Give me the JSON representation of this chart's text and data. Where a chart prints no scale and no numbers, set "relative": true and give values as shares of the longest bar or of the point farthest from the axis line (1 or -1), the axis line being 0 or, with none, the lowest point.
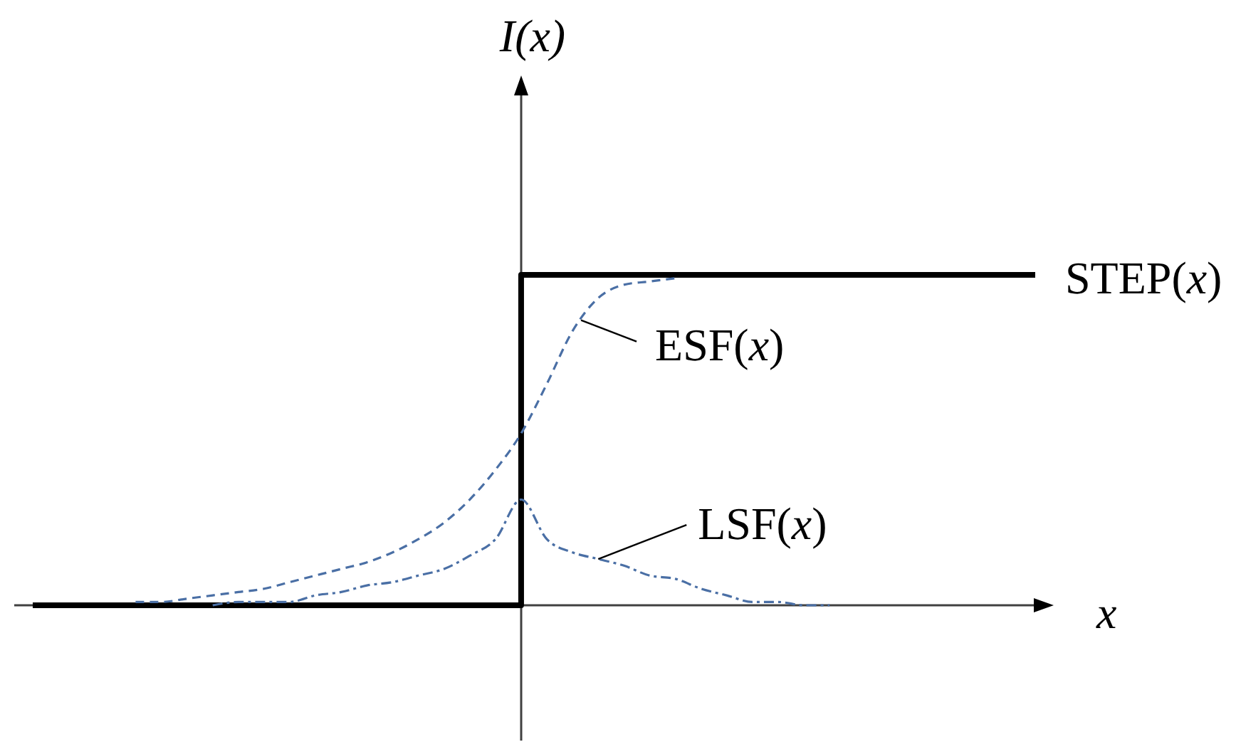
{
  "chart_data": {
    "type": "line",
    "relative": true,
    "xlabel": "x",
    "ylabel": "I(x)",
    "categories": [
      null,
      null,
      null,
      null,
      null,
      null,
      null,
      null,
      null,
      null,
      null,
      null,
      null,
      null,
      null,
      null,
      null,
      null,
      null,
      null,
      null,
      null,
      null,
      null,
      null,
      null,
      null,
      null,
      null,
      null,
      null,
      null,
      null,
      null,
      null,
      null,
      null,
      null,
      null,
      null
    ],
    "series": [
      {
        "name": "STEP(x)",
        "type": "step",
        "color": "#000000",
        "line_style": "solid",
        "values": [
          0,
          0,
          0,
          0,
          0,
          0,
          0,
          0,
          0,
          0,
          0,
          0,
          0,
          0,
          0,
          0,
          0,
          0,
          0,
          1,
          1,
          1,
          1,
          1,
          1,
          1,
          1,
          1,
          1,
          1,
          1,
          1,
          1,
          1,
          1,
          1,
          1,
          1,
          1,
          1
        ]
      },
      {
        "type": "line",
        "color": "#4a6fa5",
        "line_style": "dashed",
        "values": [
          null,
          null,
          null,
          null,
          0.01,
          0.01,
          0.02,
          0.03,
          0.04,
          0.05,
          0.07,
          0.09,
          0.11,
          0.13,
          0.16,
          0.2,
          0.25,
          0.32,
          0.41,
          0.52,
          0.67,
          0.83,
          0.93,
          0.97,
          0.98,
          0.99,
          null,
          null,
          null,
          null,
          null,
          null,
          null,
          null,
          null,
          null,
          null,
          null,
          null,
          null
        ]
      },
      {
        "type": "line",
        "color": "#4a6fa5",
        "line_style": "dashdot",
        "values": [
          null,
          null,
          null,
          null,
          null,
          null,
          null,
          0,
          0.01,
          0.01,
          0.01,
          0.03,
          0.04,
          0.06,
          0.07,
          0.09,
          0.11,
          0.15,
          0.2,
          0.32,
          0.2,
          0.16,
          0.14,
          0.12,
          0.09,
          0.08,
          0.05,
          0.03,
          0.01,
          0.01,
          0,
          0,
          null,
          null,
          null,
          null,
          null,
          null,
          null,
          null
        ]
      }
    ],
    "annotations": [
      "ESF(x)",
      "LSF(x)"
    ]
  }
}
